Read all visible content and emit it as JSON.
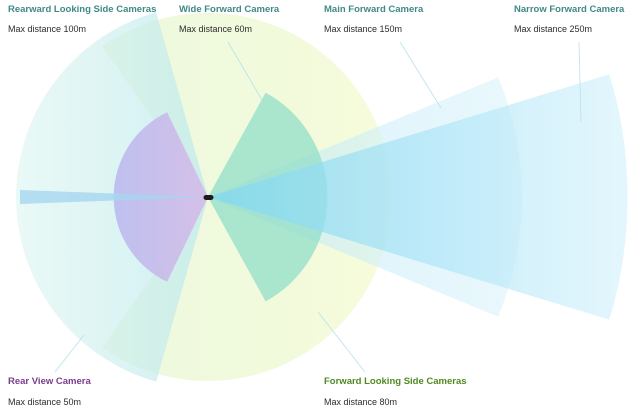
{
  "cameras": {
    "rearward_side": {
      "title": "Rearward Looking Side Cameras",
      "distance": "Max distance 100m",
      "color": "#3f8a86"
    },
    "wide_forward": {
      "title": "Wide Forward Camera",
      "distance": "Max distance 60m",
      "color": "#3f8a86"
    },
    "main_forward": {
      "title": "Main Forward Camera",
      "distance": "Max distance 150m",
      "color": "#3f8a86"
    },
    "narrow_forward": {
      "title": "Narrow Forward Camera",
      "distance": "Max distance 250m",
      "color": "#3f8a86"
    },
    "rear_view": {
      "title": "Rear View Camera",
      "distance": "Max distance 50m",
      "color": "#7a3c8c"
    },
    "forward_side": {
      "title": "Forward Looking Side Cameras",
      "distance": "Max distance 80m",
      "color": "#4f8a22"
    }
  },
  "zone_colors": {
    "forward_side": "#e8f7b4",
    "rearward_side": "#c7eee8",
    "rear_view": "#b9b3ee",
    "wide_forward": "#9be1c9",
    "main_forward": "#c9ecf8",
    "narrow_forward": "#a8e3f7",
    "car": "#1c1c1c"
  }
}
